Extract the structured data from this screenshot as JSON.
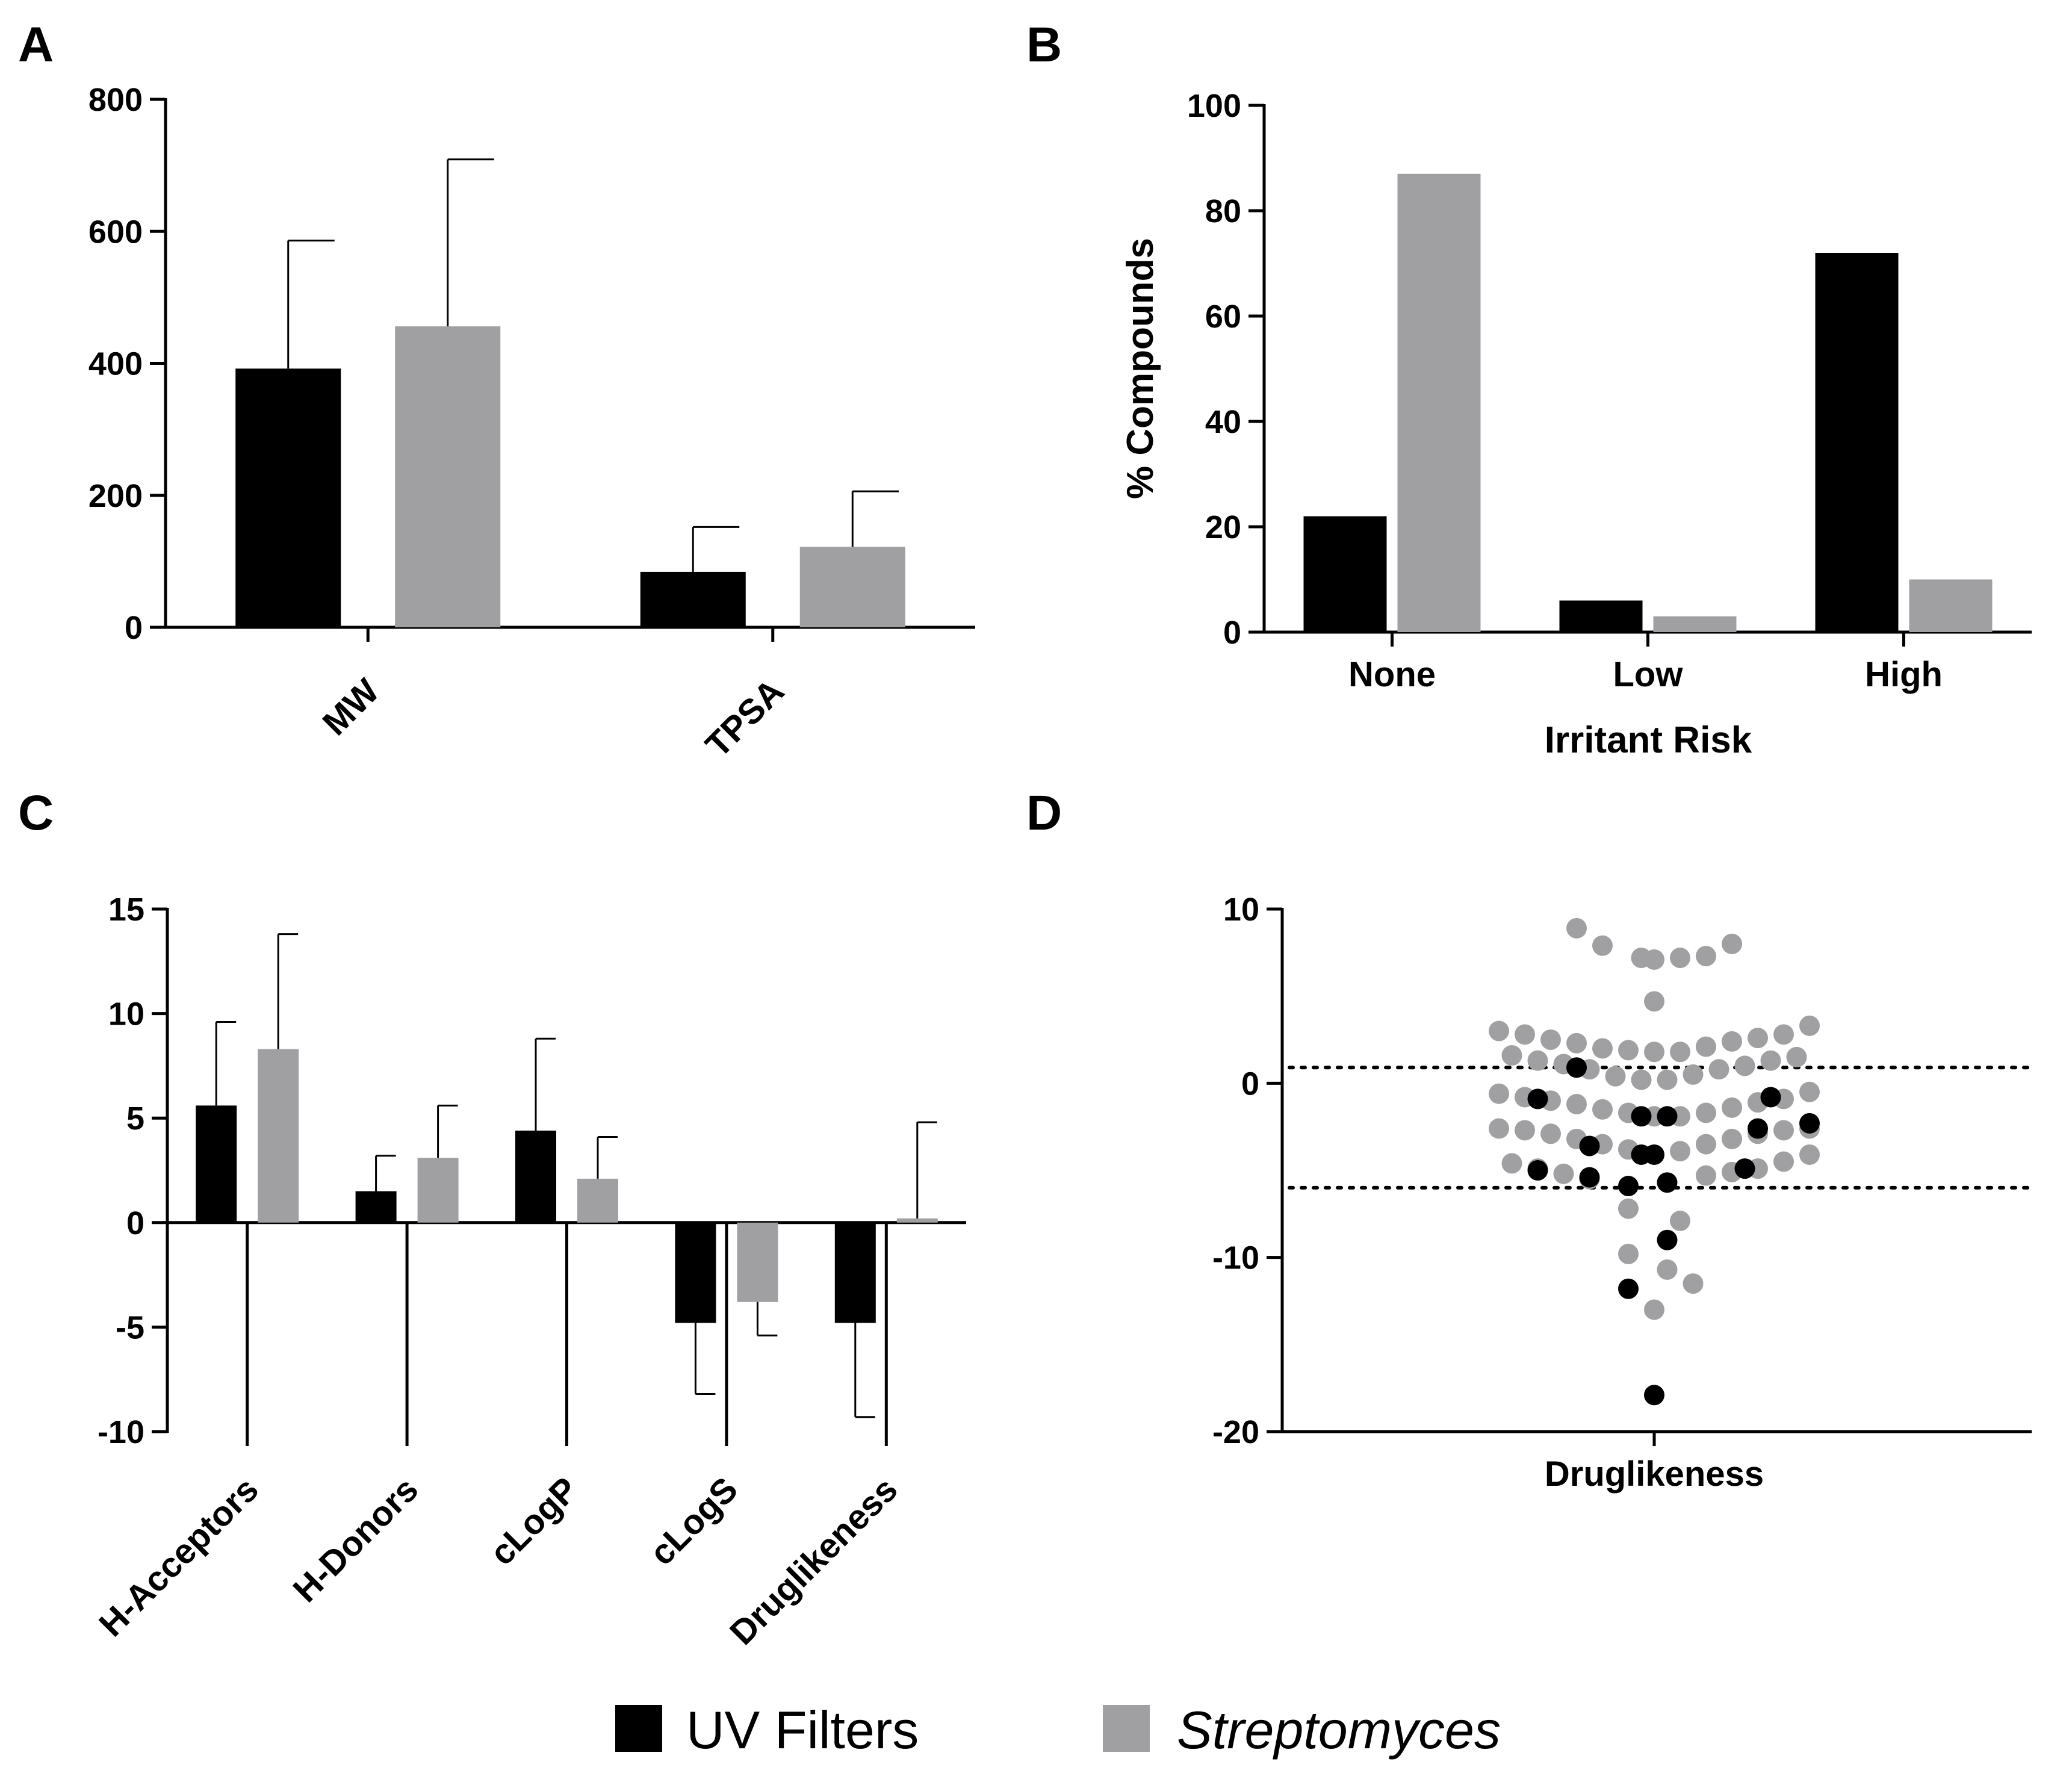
{
  "colors": {
    "uv": "#000000",
    "strep": "#a0a0a2"
  },
  "legend": [
    {
      "label": "UV Filters",
      "color": "#000000",
      "italic": false
    },
    {
      "label": "Streptomyces",
      "color": "#a0a0a2",
      "italic": true
    }
  ],
  "chart_data": [
    {
      "panel": "A",
      "type": "bar",
      "title": "",
      "xlabel": "",
      "ylabel": "",
      "ylim": [
        0,
        800
      ],
      "yticks": [
        0,
        200,
        400,
        600,
        800
      ],
      "categories": [
        "MW",
        "TPSA"
      ],
      "series": [
        {
          "name": "UV Filters",
          "values": [
            392,
            84
          ],
          "error": [
            194,
            68
          ]
        },
        {
          "name": "Streptomyces",
          "values": [
            456,
            122
          ],
          "error": [
            253,
            84
          ]
        }
      ]
    },
    {
      "panel": "B",
      "type": "bar",
      "title": "",
      "xlabel": "Irritant Risk",
      "ylabel": "% Compounds",
      "ylim": [
        0,
        100
      ],
      "yticks": [
        0,
        20,
        40,
        60,
        80,
        100
      ],
      "categories": [
        "None",
        "Low",
        "High"
      ],
      "series": [
        {
          "name": "UV Filters",
          "values": [
            22,
            6,
            72
          ]
        },
        {
          "name": "Streptomyces",
          "values": [
            87,
            3,
            10
          ]
        }
      ]
    },
    {
      "panel": "C",
      "type": "bar",
      "title": "",
      "xlabel": "",
      "ylabel": "",
      "ylim": [
        -10,
        15
      ],
      "yticks": [
        -10,
        -5,
        0,
        5,
        10,
        15
      ],
      "categories": [
        "H-Acceptors",
        "H-Donors",
        "cLogP",
        "cLogS",
        "Druglikeness"
      ],
      "series": [
        {
          "name": "UV Filters",
          "values": [
            5.6,
            1.5,
            4.4,
            -4.8,
            -4.8
          ],
          "error": [
            4.0,
            1.7,
            4.4,
            3.4,
            4.5
          ]
        },
        {
          "name": "Streptomyces",
          "values": [
            8.3,
            3.1,
            2.1,
            -3.8,
            0.2
          ],
          "error": [
            5.5,
            2.5,
            2.0,
            1.6,
            4.6
          ]
        }
      ]
    },
    {
      "panel": "D",
      "type": "scatter",
      "title": "",
      "xlabel": "Druglikeness",
      "ylabel": "",
      "ylim": [
        -20,
        10
      ],
      "yticks": [
        -20,
        -10,
        0,
        10
      ],
      "reference_lines": [
        0.9,
        -6.0
      ],
      "series": [
        {
          "name": "Streptomyces",
          "points": [
            [
              -0.6,
              8.9
            ],
            [
              -0.4,
              7.9
            ],
            [
              -0.1,
              7.2
            ],
            [
              0.0,
              7.1
            ],
            [
              0.2,
              7.2
            ],
            [
              0.4,
              7.3
            ],
            [
              0.6,
              8.0
            ],
            [
              0.0,
              4.7
            ],
            [
              -1.2,
              3.0
            ],
            [
              -1.0,
              2.8
            ],
            [
              -0.8,
              2.5
            ],
            [
              -0.6,
              2.3
            ],
            [
              -0.4,
              2.0
            ],
            [
              -0.2,
              1.9
            ],
            [
              0.0,
              1.8
            ],
            [
              0.2,
              1.8
            ],
            [
              0.4,
              2.1
            ],
            [
              0.6,
              2.4
            ],
            [
              0.8,
              2.6
            ],
            [
              1.0,
              2.8
            ],
            [
              1.2,
              3.3
            ],
            [
              -1.1,
              1.6
            ],
            [
              -0.9,
              1.3
            ],
            [
              -0.7,
              1.1
            ],
            [
              -0.5,
              0.8
            ],
            [
              -0.3,
              0.4
            ],
            [
              -0.1,
              0.2
            ],
            [
              0.1,
              0.2
            ],
            [
              0.3,
              0.5
            ],
            [
              0.5,
              0.8
            ],
            [
              0.7,
              1.0
            ],
            [
              0.9,
              1.3
            ],
            [
              1.1,
              1.5
            ],
            [
              -1.2,
              -0.6
            ],
            [
              -1.0,
              -0.8
            ],
            [
              -0.8,
              -1.0
            ],
            [
              -0.6,
              -1.2
            ],
            [
              -0.4,
              -1.5
            ],
            [
              -0.2,
              -1.7
            ],
            [
              0.0,
              -1.9
            ],
            [
              0.2,
              -1.9
            ],
            [
              0.4,
              -1.7
            ],
            [
              0.6,
              -1.4
            ],
            [
              0.8,
              -1.1
            ],
            [
              1.0,
              -0.9
            ],
            [
              1.2,
              -0.5
            ],
            [
              -1.2,
              -2.6
            ],
            [
              -1.0,
              -2.7
            ],
            [
              -0.8,
              -2.9
            ],
            [
              -0.6,
              -3.2
            ],
            [
              -0.4,
              -3.5
            ],
            [
              -0.2,
              -3.8
            ],
            [
              0.2,
              -3.9
            ],
            [
              0.4,
              -3.5
            ],
            [
              0.6,
              -3.2
            ],
            [
              0.8,
              -2.9
            ],
            [
              1.0,
              -2.7
            ],
            [
              1.2,
              -2.6
            ],
            [
              -1.1,
              -4.6
            ],
            [
              -0.9,
              -4.9
            ],
            [
              -0.7,
              -5.2
            ],
            [
              -0.5,
              -5.5
            ],
            [
              0.4,
              -5.3
            ],
            [
              0.6,
              -5.1
            ],
            [
              0.8,
              -4.9
            ],
            [
              1.0,
              -4.5
            ],
            [
              1.2,
              -4.1
            ],
            [
              -0.2,
              -7.2
            ],
            [
              0.2,
              -7.9
            ],
            [
              -0.2,
              -9.8
            ],
            [
              0.1,
              -10.7
            ],
            [
              0.3,
              -11.5
            ],
            [
              0.0,
              -13.0
            ]
          ]
        },
        {
          "name": "UV Filters",
          "points": [
            [
              -0.6,
              0.9
            ],
            [
              -0.9,
              -0.9
            ],
            [
              -0.1,
              -1.9
            ],
            [
              0.1,
              -1.9
            ],
            [
              0.9,
              -0.8
            ],
            [
              1.2,
              -2.3
            ],
            [
              0.8,
              -2.6
            ],
            [
              -0.5,
              -3.6
            ],
            [
              -0.1,
              -4.1
            ],
            [
              0.0,
              -4.1
            ],
            [
              -0.9,
              -5.0
            ],
            [
              -0.5,
              -5.4
            ],
            [
              -0.2,
              -5.9
            ],
            [
              0.1,
              -5.7
            ],
            [
              0.7,
              -4.9
            ],
            [
              0.1,
              -9.0
            ],
            [
              -0.2,
              -11.8
            ],
            [
              0.0,
              -17.9
            ]
          ]
        }
      ]
    }
  ]
}
